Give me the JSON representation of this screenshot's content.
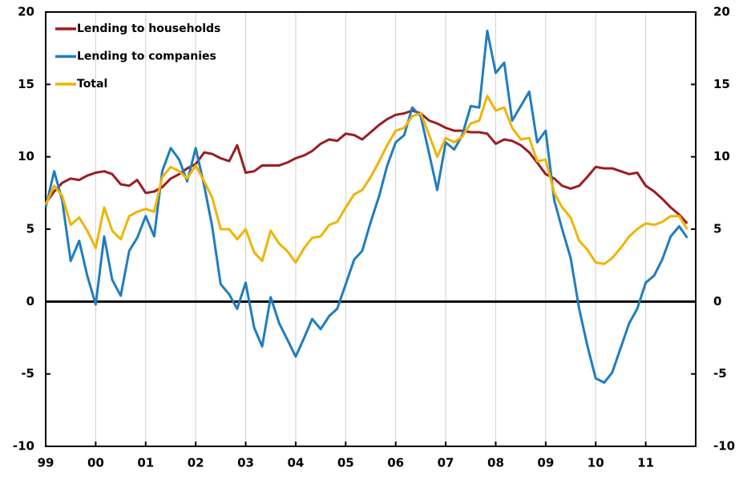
{
  "chart_data": {
    "type": "line",
    "x": [
      1999,
      1999.17,
      1999.33,
      1999.5,
      1999.67,
      1999.83,
      2000,
      2000.17,
      2000.33,
      2000.5,
      2000.67,
      2000.83,
      2001,
      2001.17,
      2001.33,
      2001.5,
      2001.67,
      2001.83,
      2002,
      2002.17,
      2002.33,
      2002.5,
      2002.67,
      2002.83,
      2003,
      2003.17,
      2003.33,
      2003.5,
      2003.67,
      2003.83,
      2004,
      2004.17,
      2004.33,
      2004.5,
      2004.67,
      2004.83,
      2005,
      2005.17,
      2005.33,
      2005.5,
      2005.67,
      2005.83,
      2006,
      2006.17,
      2006.33,
      2006.5,
      2006.67,
      2006.83,
      2007,
      2007.17,
      2007.33,
      2007.5,
      2007.67,
      2007.83,
      2008,
      2008.17,
      2008.33,
      2008.5,
      2008.67,
      2008.83,
      2009,
      2009.17,
      2009.33,
      2009.5,
      2009.67,
      2009.83,
      2010,
      2010.17,
      2010.33,
      2010.5,
      2010.67,
      2010.83,
      2011,
      2011.17,
      2011.33,
      2011.5,
      2011.67,
      2011.83
    ],
    "series": [
      {
        "name": "Lending to households",
        "color": "#9b1c22",
        "values": [
          6.8,
          7.6,
          8.2,
          8.5,
          8.4,
          8.7,
          8.9,
          9.0,
          8.8,
          8.1,
          8.0,
          8.4,
          7.5,
          7.6,
          7.9,
          8.5,
          8.8,
          9.2,
          9.5,
          10.3,
          10.2,
          9.9,
          9.7,
          10.8,
          8.9,
          9.0,
          9.4,
          9.4,
          9.4,
          9.6,
          9.9,
          10.1,
          10.4,
          10.9,
          11.2,
          11.1,
          11.6,
          11.5,
          11.2,
          11.7,
          12.2,
          12.6,
          12.9,
          13.0,
          13.2,
          13.0,
          12.5,
          12.3,
          12.0,
          11.8,
          11.8,
          11.7,
          11.7,
          11.6,
          10.9,
          11.2,
          11.1,
          10.8,
          10.3,
          9.6,
          8.8,
          8.5,
          8.0,
          7.8,
          8.0,
          8.6,
          9.3,
          9.2,
          9.2,
          9.0,
          8.8,
          8.9,
          8.0,
          7.6,
          7.1,
          6.5,
          6.0,
          5.4
        ]
      },
      {
        "name": "Lending to companies",
        "color": "#1f7dbf",
        "values": [
          6.5,
          9.0,
          7.0,
          2.8,
          4.2,
          1.8,
          -0.2,
          4.5,
          1.5,
          0.4,
          3.5,
          4.4,
          5.9,
          4.5,
          9.0,
          10.6,
          9.8,
          8.3,
          10.6,
          8.0,
          5.2,
          1.2,
          0.5,
          -0.5,
          1.3,
          -1.8,
          -3.1,
          0.3,
          -1.5,
          -2.6,
          -3.8,
          -2.5,
          -1.2,
          -1.9,
          -1.0,
          -0.5,
          1.2,
          2.9,
          3.5,
          5.5,
          7.3,
          9.4,
          11.0,
          11.5,
          13.4,
          12.8,
          10.2,
          7.7,
          11.0,
          10.5,
          11.5,
          13.5,
          13.4,
          18.7,
          15.8,
          16.5,
          12.5,
          13.5,
          14.5,
          11.0,
          11.8,
          7.0,
          5.0,
          3.0,
          -0.5,
          -3.0,
          -5.3,
          -5.6,
          -4.9,
          -3.2,
          -1.5,
          -0.5,
          1.3,
          1.8,
          2.9,
          4.5,
          5.2,
          4.4
        ]
      },
      {
        "name": "Total",
        "color": "#f0b400",
        "values": [
          6.7,
          8.0,
          7.3,
          5.3,
          5.8,
          4.9,
          3.7,
          6.5,
          4.9,
          4.3,
          5.9,
          6.2,
          6.4,
          6.2,
          8.6,
          9.3,
          9.0,
          8.5,
          9.4,
          8.3,
          7.2,
          5.0,
          5.0,
          4.3,
          5.0,
          3.4,
          2.8,
          4.9,
          4.0,
          3.5,
          2.7,
          3.7,
          4.4,
          4.5,
          5.3,
          5.5,
          6.5,
          7.4,
          7.7,
          8.6,
          9.7,
          10.8,
          11.8,
          12.0,
          12.8,
          13.0,
          11.5,
          10.0,
          11.3,
          11.0,
          11.4,
          12.3,
          12.5,
          14.2,
          13.2,
          13.4,
          12.0,
          11.2,
          11.3,
          9.7,
          9.8,
          7.5,
          6.5,
          5.8,
          4.2,
          3.6,
          2.7,
          2.6,
          3.0,
          3.7,
          4.5,
          5.0,
          5.4,
          5.3,
          5.5,
          5.9,
          5.9,
          5.0
        ]
      }
    ],
    "xlim": [
      1999,
      2012
    ],
    "xticks": [
      {
        "value": 1999,
        "label": "99"
      },
      {
        "value": 2000,
        "label": "00"
      },
      {
        "value": 2001,
        "label": "01"
      },
      {
        "value": 2002,
        "label": "02"
      },
      {
        "value": 2003,
        "label": "03"
      },
      {
        "value": 2004,
        "label": "04"
      },
      {
        "value": 2005,
        "label": "05"
      },
      {
        "value": 2006,
        "label": "06"
      },
      {
        "value": 2007,
        "label": "07"
      },
      {
        "value": 2008,
        "label": "08"
      },
      {
        "value": 2009,
        "label": "09"
      },
      {
        "value": 2010,
        "label": "10"
      },
      {
        "value": 2011,
        "label": "11"
      }
    ],
    "ylim": [
      -10,
      20
    ],
    "yticks": [
      -10,
      -5,
      0,
      5,
      10,
      15,
      20
    ],
    "y2lim": [
      -10,
      20
    ],
    "y2ticks": [
      -10,
      -5,
      0,
      5,
      10,
      15,
      20
    ],
    "grid": true,
    "legend": "top-left"
  }
}
